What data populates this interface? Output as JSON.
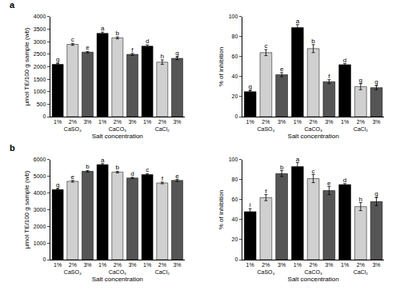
{
  "chart_data": [
    {
      "type": "bar",
      "panel": "a",
      "categories": [
        "CaSO₄",
        "CaCO₃",
        "CaCl₂"
      ],
      "xlabel": "Salt concentration",
      "ylabel": "µmol TE/100 g sample (wb)",
      "ylim": [
        0,
        4000
      ],
      "yticks": [
        0,
        500,
        1000,
        1500,
        2000,
        2500,
        3000,
        3500,
        4000
      ],
      "series": [
        {
          "name": "1%",
          "color": "#000000",
          "values": [
            2090,
            3330,
            2820
          ],
          "errors": [
            40,
            50,
            50
          ],
          "letters": [
            "g",
            "a",
            "d"
          ]
        },
        {
          "name": "2%",
          "color": "#d0d0d0",
          "values": [
            2890,
            3150,
            2180
          ],
          "errors": [
            40,
            40,
            90
          ],
          "letters": [
            "c",
            "b",
            "h"
          ]
        },
        {
          "name": "3%",
          "color": "#555555",
          "values": [
            2580,
            2490,
            2330
          ],
          "errors": [
            30,
            40,
            50
          ],
          "letters": [
            "e",
            "f",
            "g"
          ]
        }
      ]
    },
    {
      "type": "bar",
      "categories": [
        "CaSO₄",
        "CaCO₃",
        "CaCl₂"
      ],
      "xlabel": "Salt concentration",
      "ylabel": "% of inhibition",
      "ylim": [
        0,
        100
      ],
      "yticks": [
        0,
        20,
        40,
        60,
        80,
        100
      ],
      "series": [
        {
          "name": "1%",
          "color": "#000000",
          "values": [
            25,
            89,
            52
          ],
          "errors": [
            1,
            3,
            1
          ],
          "letters": [
            "g",
            "a",
            "d"
          ]
        },
        {
          "name": "2%",
          "color": "#d0d0d0",
          "values": [
            64,
            68,
            30
          ],
          "errors": [
            3,
            4,
            3
          ],
          "letters": [
            "c",
            "b",
            "g"
          ]
        },
        {
          "name": "3%",
          "color": "#555555",
          "values": [
            42,
            35,
            29
          ],
          "errors": [
            2,
            2,
            2
          ],
          "letters": [
            "e",
            "f",
            "g"
          ]
        }
      ]
    },
    {
      "type": "bar",
      "panel": "b",
      "categories": [
        "CaSO₄",
        "CaCO₃",
        "CaCl₂"
      ],
      "xlabel": "Salt concentration",
      "ylabel": "µmol TE/100 g sample (wb)",
      "ylim": [
        0,
        6000
      ],
      "yticks": [
        0,
        1000,
        2000,
        3000,
        4000,
        5000,
        6000
      ],
      "series": [
        {
          "name": "1%",
          "color": "#000000",
          "values": [
            4200,
            5700,
            5100
          ],
          "errors": [
            50,
            60,
            60
          ],
          "letters": [
            "g",
            "a",
            "c"
          ]
        },
        {
          "name": "2%",
          "color": "#d0d0d0",
          "values": [
            4700,
            5250,
            4600
          ],
          "errors": [
            50,
            50,
            50
          ],
          "letters": [
            "e",
            "b",
            "f"
          ]
        },
        {
          "name": "3%",
          "color": "#555555",
          "values": [
            5300,
            4900,
            4750
          ],
          "errors": [
            50,
            40,
            60
          ],
          "letters": [
            "b",
            "d",
            "e"
          ]
        }
      ]
    },
    {
      "type": "bar",
      "categories": [
        "CaSO₄",
        "CaCO₃",
        "CaCl₂"
      ],
      "xlabel": "Salt concentration",
      "ylabel": "% of inhibition",
      "ylim": [
        0,
        100
      ],
      "yticks": [
        0,
        20,
        40,
        60,
        80,
        100
      ],
      "series": [
        {
          "name": "1%",
          "color": "#000000",
          "values": [
            48,
            93,
            75
          ],
          "errors": [
            3,
            4,
            1
          ],
          "letters": [
            "i",
            "a",
            "d"
          ]
        },
        {
          "name": "2%",
          "color": "#d0d0d0",
          "values": [
            62,
            81,
            53
          ],
          "errors": [
            3,
            4,
            4
          ],
          "letters": [
            "f",
            "c",
            "h"
          ]
        },
        {
          "name": "3%",
          "color": "#555555",
          "values": [
            86,
            69,
            58
          ],
          "errors": [
            3,
            4,
            4
          ],
          "letters": [
            "b",
            "e",
            "g"
          ]
        }
      ]
    }
  ]
}
